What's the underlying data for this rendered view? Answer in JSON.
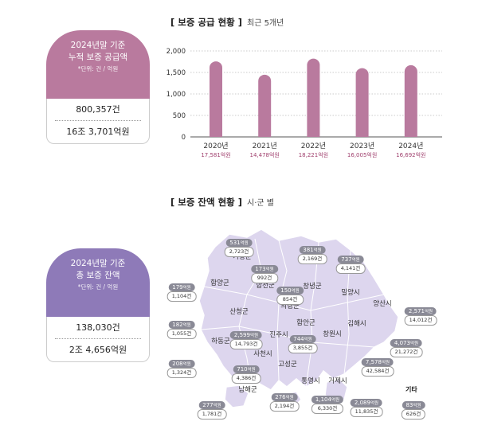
{
  "supply_card": {
    "title_line1": "2024년말 기준",
    "title_line2": "누적 보증 공급액",
    "unit_note": "*단위: 건 / 억원",
    "count": "800,357건",
    "amount": "16조 3,701억원"
  },
  "balance_card": {
    "title_line1": "2024년말 기준",
    "title_line2": "총 보증 잔액",
    "unit_note": "*단위: 건 / 억원",
    "count": "138,030건",
    "amount": "2조 4,656억원"
  },
  "supply_section": {
    "title": "[ 보증 공급 현황 ]",
    "subtitle": "최근 5개년"
  },
  "balance_section": {
    "title": "[ 보증 잔액 현황 ]",
    "subtitle": "시·군 별"
  },
  "colors": {
    "bar": "#b97a9e",
    "supply_card": "#b97a9e",
    "balance_card": "#8e7ab8",
    "map_fill": "#ddd6ee",
    "badge": "#8a8a96"
  },
  "chart_data": {
    "type": "bar",
    "categories": [
      "2020년",
      "2021년",
      "2022년",
      "2023년",
      "2024년"
    ],
    "values": [
      1758.1,
      1447.8,
      1822.1,
      1600.5,
      1669.2
    ],
    "value_labels": [
      "17,581억원",
      "14,478억원",
      "18,221억원",
      "16,005억원",
      "16,692억원"
    ],
    "y_ticks": [
      "0",
      "500",
      "1,000",
      "1,500",
      "2,000"
    ],
    "ylim": [
      0,
      2000
    ],
    "grid": true
  },
  "regions": [
    {
      "name": "거창군",
      "count": "531",
      "amount": "2,723건"
    },
    {
      "name": "창녕군",
      "count": "381",
      "amount": "2,169건"
    },
    {
      "name": "밀양시",
      "count": "737",
      "amount": "4,141건"
    },
    {
      "name": "함양군",
      "count": "179",
      "amount": "1,104건"
    },
    {
      "name": "합천군",
      "count": "173",
      "amount": "992건"
    },
    {
      "name": "의령군",
      "count": "150",
      "amount": "854건"
    },
    {
      "name": "양산시",
      "count": "2,571",
      "amount": "14,012건"
    },
    {
      "name": "산청군",
      "count": "182",
      "amount": "1,055건"
    },
    {
      "name": "진주시",
      "count": "2,599",
      "amount": "14,793건"
    },
    {
      "name": "함안군",
      "count": "744",
      "amount": "3,855건"
    },
    {
      "name": "김해시",
      "count": "4,073",
      "amount": "21,272건"
    },
    {
      "name": "창원시",
      "count": "7,578",
      "amount": "42,584건"
    },
    {
      "name": "하동군",
      "count": "208",
      "amount": "1,324건"
    },
    {
      "name": "사천시",
      "count": "710",
      "amount": "4,386건"
    },
    {
      "name": "고성군",
      "count": "276",
      "amount": "2,194건"
    },
    {
      "name": "통영시",
      "count": "1,104",
      "amount": "6,330건"
    },
    {
      "name": "거제시",
      "count": "2,089",
      "amount": "11,835건"
    },
    {
      "name": "남해군",
      "count": "277",
      "amount": "1,781건"
    },
    {
      "name": "기타",
      "count": "83",
      "amount": "626건"
    }
  ],
  "badge_unit": "억원"
}
